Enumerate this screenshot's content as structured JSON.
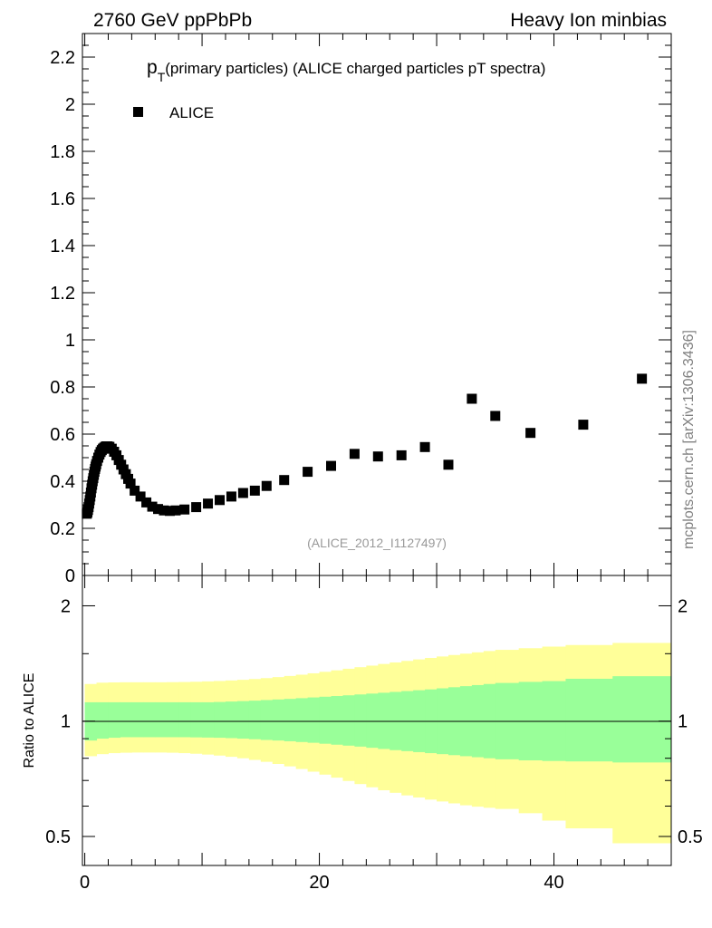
{
  "header": {
    "left": "2760 GeV ppPbPb",
    "right": "Heavy Ion minbias"
  },
  "side_label": "mcplots.cern.ch [arXiv:1306.3436]",
  "chart_data": [
    {
      "type": "scatter",
      "panel": "main",
      "title_main": "p",
      "title_sub": "T",
      "title_rest": "(primary particles) (ALICE charged particles pT spectra)",
      "ref_name": "(ALICE_2012_I1127497)",
      "ylim": [
        0,
        2.3
      ],
      "xlim": [
        -0.2,
        50
      ],
      "y_ticks": [
        0,
        0.2,
        0.4,
        0.6,
        0.8,
        1,
        1.2,
        1.4,
        1.6,
        1.8,
        2,
        2.2
      ],
      "y_tick_labels": [
        "0",
        "0.2",
        "0.4",
        "0.6",
        "0.8",
        "1",
        "1.2",
        "1.4",
        "1.6",
        "1.8",
        "2",
        "2.2"
      ],
      "legend": "top-left",
      "series": [
        {
          "name": "ALICE",
          "color": "#000000",
          "marker": "square",
          "x": [
            0.175,
            0.225,
            0.275,
            0.325,
            0.375,
            0.425,
            0.475,
            0.525,
            0.575,
            0.625,
            0.675,
            0.725,
            0.775,
            0.825,
            0.875,
            0.925,
            0.975,
            1.05,
            1.15,
            1.25,
            1.35,
            1.45,
            1.55,
            1.65,
            1.75,
            1.85,
            1.95,
            2.1,
            2.3,
            2.5,
            2.7,
            2.9,
            3.1,
            3.3,
            3.5,
            3.7,
            3.9,
            4.25,
            4.75,
            5.25,
            5.75,
            6.25,
            6.75,
            7.25,
            7.75,
            8.5,
            9.5,
            10.5,
            11.5,
            12.5,
            13.5,
            14.5,
            15.5,
            17,
            19,
            21,
            23,
            25,
            27,
            29,
            31,
            33,
            35,
            38,
            42.5,
            47.5
          ],
          "y": [
            0.262,
            0.268,
            0.278,
            0.29,
            0.305,
            0.32,
            0.335,
            0.352,
            0.37,
            0.385,
            0.4,
            0.413,
            0.427,
            0.44,
            0.452,
            0.462,
            0.472,
            0.486,
            0.5,
            0.513,
            0.524,
            0.532,
            0.538,
            0.542,
            0.546,
            0.548,
            0.548,
            0.546,
            0.538,
            0.525,
            0.51,
            0.49,
            0.47,
            0.45,
            0.43,
            0.41,
            0.39,
            0.36,
            0.335,
            0.31,
            0.292,
            0.282,
            0.276,
            0.274,
            0.276,
            0.28,
            0.29,
            0.305,
            0.32,
            0.335,
            0.35,
            0.36,
            0.38,
            0.405,
            0.44,
            0.465,
            0.516,
            0.505,
            0.51,
            0.545,
            0.47,
            0.75,
            0.677,
            0.605,
            0.64,
            0.835
          ]
        }
      ]
    },
    {
      "type": "area",
      "panel": "ratio",
      "ylabel": "Ratio to ALICE",
      "ylog": true,
      "ylim": [
        0.42,
        2.4
      ],
      "xlim": [
        -0.2,
        50
      ],
      "x_ticks": [
        0,
        20,
        40
      ],
      "x_tick_labels": [
        "0",
        "20",
        "40"
      ],
      "y_ticks": [
        0.5,
        1,
        2
      ],
      "y_tick_labels": [
        "0.5",
        "1",
        "2"
      ],
      "reference_line": 1,
      "bins": [
        0,
        1,
        2,
        3,
        4,
        5,
        6,
        7,
        8,
        9,
        10,
        11,
        12,
        13,
        14,
        15,
        16,
        17,
        18,
        19,
        20,
        21,
        22,
        23,
        24,
        25,
        26,
        27,
        28,
        29,
        30,
        31,
        32,
        33,
        34,
        35,
        37,
        39,
        41,
        45,
        50
      ],
      "stat_band": {
        "color": "#99ff99",
        "lo": [
          0.89,
          0.9,
          0.905,
          0.908,
          0.908,
          0.908,
          0.908,
          0.908,
          0.908,
          0.907,
          0.906,
          0.905,
          0.903,
          0.9,
          0.897,
          0.893,
          0.89,
          0.886,
          0.882,
          0.878,
          0.873,
          0.868,
          0.863,
          0.858,
          0.852,
          0.846,
          0.84,
          0.835,
          0.83,
          0.825,
          0.82,
          0.815,
          0.81,
          0.805,
          0.8,
          0.795,
          0.79,
          0.787,
          0.785,
          0.78
        ],
        "hi": [
          1.12,
          1.12,
          1.12,
          1.12,
          1.12,
          1.12,
          1.12,
          1.12,
          1.12,
          1.12,
          1.12,
          1.122,
          1.125,
          1.128,
          1.131,
          1.135,
          1.139,
          1.143,
          1.148,
          1.153,
          1.158,
          1.163,
          1.168,
          1.174,
          1.18,
          1.186,
          1.192,
          1.198,
          1.204,
          1.21,
          1.218,
          1.226,
          1.234,
          1.242,
          1.25,
          1.258,
          1.266,
          1.272,
          1.29,
          1.31
        ]
      },
      "syst_band": {
        "color": "#ffff99",
        "lo": [
          0.81,
          0.82,
          0.825,
          0.827,
          0.828,
          0.828,
          0.828,
          0.827,
          0.825,
          0.822,
          0.818,
          0.813,
          0.807,
          0.8,
          0.792,
          0.783,
          0.773,
          0.762,
          0.75,
          0.738,
          0.725,
          0.712,
          0.698,
          0.685,
          0.672,
          0.66,
          0.65,
          0.64,
          0.632,
          0.624,
          0.617,
          0.61,
          0.603,
          0.598,
          0.594,
          0.59,
          0.575,
          0.55,
          0.525,
          0.48
        ],
        "hi": [
          1.25,
          1.26,
          1.262,
          1.263,
          1.263,
          1.263,
          1.263,
          1.264,
          1.265,
          1.267,
          1.27,
          1.273,
          1.277,
          1.282,
          1.288,
          1.295,
          1.303,
          1.312,
          1.322,
          1.333,
          1.345,
          1.357,
          1.37,
          1.383,
          1.396,
          1.41,
          1.423,
          1.436,
          1.449,
          1.462,
          1.475,
          1.488,
          1.5,
          1.512,
          1.524,
          1.535,
          1.55,
          1.565,
          1.58,
          1.6
        ]
      }
    }
  ]
}
